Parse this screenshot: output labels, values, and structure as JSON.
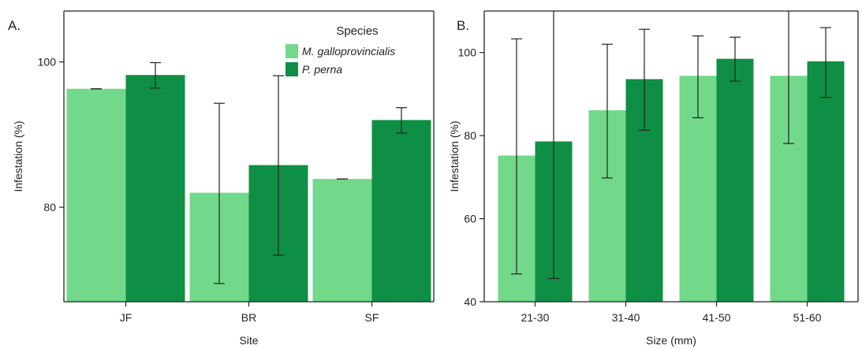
{
  "colors": {
    "M_galloprovincialis": "#72d98a",
    "P_perna": "#0f8f45",
    "frame": "#222222",
    "errorbar": "#222222"
  },
  "legend": {
    "title": "Species",
    "placement": "top-right of panel A",
    "entries": [
      "M. galloprovincialis",
      "P. perna"
    ]
  },
  "chart_data": [
    {
      "type": "bar",
      "panel_label": "A.",
      "xlabel": "Site",
      "ylabel": "Infestation (%)",
      "ylim": [
        67,
        107
      ],
      "yticks": [
        80,
        100
      ],
      "categories": [
        "JF",
        "BR",
        "SF"
      ],
      "series": [
        {
          "name": "M. galloprovincialis",
          "values": [
            96.3,
            82.0,
            83.9
          ],
          "err_low": [
            96.3,
            69.5,
            83.9
          ],
          "err_high": [
            96.3,
            94.3,
            83.9
          ]
        },
        {
          "name": "P. perna",
          "values": [
            98.2,
            85.8,
            92.0
          ],
          "err_low": [
            96.4,
            73.4,
            90.2
          ],
          "err_high": [
            99.9,
            98.1,
            93.7
          ]
        }
      ],
      "grid": false
    },
    {
      "type": "bar",
      "panel_label": "B.",
      "xlabel": "Size (mm)",
      "ylabel": "Infestation (%)",
      "ylim": [
        40,
        110
      ],
      "yticks": [
        40,
        60,
        80,
        100
      ],
      "categories": [
        "21-30",
        "31-40",
        "41-50",
        "51-60"
      ],
      "series": [
        {
          "name": "M. galloprovincialis",
          "values": [
            75.2,
            86.1,
            94.4,
            94.4
          ],
          "err_low": [
            46.7,
            69.8,
            84.3,
            78.1
          ],
          "err_high": [
            103.3,
            102.0,
            104.0,
            110.0
          ]
        },
        {
          "name": "P. perna",
          "values": [
            78.6,
            93.6,
            98.5,
            97.9
          ],
          "err_low": [
            45.6,
            81.3,
            93.1,
            89.2
          ],
          "err_high": [
            110.0,
            105.6,
            103.7,
            106.0
          ]
        }
      ],
      "grid": false
    }
  ]
}
